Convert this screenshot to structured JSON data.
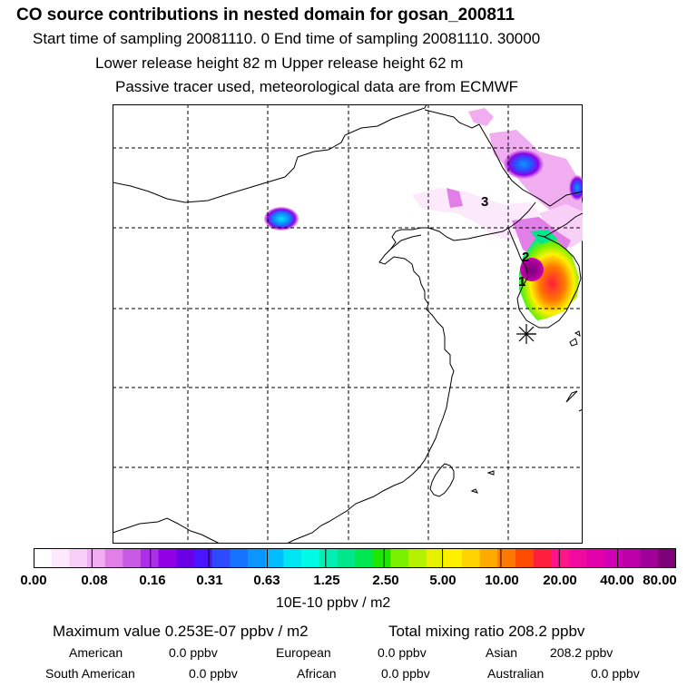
{
  "header": {
    "title": "CO  source contributions in nested domain for gosan_200811",
    "line1": "Start time of sampling 20081110.     0     End time of sampling 20081110. 30000",
    "line2": "Lower release height   82 m          Upper release height   62 m",
    "line3": "Passive tracer used, meteorological data are from ECMWF"
  },
  "map": {
    "site_labels": [
      "1",
      "2",
      "3"
    ],
    "receptor_icon": "asterisk-star-icon",
    "grid": true
  },
  "colorbar": {
    "colors": [
      "#ffffff",
      "#fce9fc",
      "#f7cff7",
      "#f0adf0",
      "#e17ee8",
      "#c85ae6",
      "#ad2ee8",
      "#9200e6",
      "#6b00e6",
      "#4a14ff",
      "#2e4aff",
      "#1473ff",
      "#0a96ff",
      "#00bdff",
      "#00e6f5",
      "#00fae6",
      "#00f0b4",
      "#00e68c",
      "#00e650",
      "#1ee600",
      "#78f000",
      "#b4f000",
      "#e6f000",
      "#fff000",
      "#ffd200",
      "#ffaa00",
      "#ff7800",
      "#ff4b00",
      "#ff1e3c",
      "#ff148c",
      "#f00aa0",
      "#e100aa",
      "#d200b4",
      "#be00aa",
      "#a00096",
      "#7d0078"
    ],
    "tick_labels": [
      "0.00",
      "0.08",
      "0.16",
      "0.31",
      "0.63",
      "1.25",
      "2.50",
      "5.00",
      "10.00",
      "20.00",
      "40.00",
      "80.00"
    ],
    "unit": "10E-10 ppbv / m2"
  },
  "footer": {
    "max_label": "Maximum value  0.253E-07 ppbv / m2",
    "total_label": "Total mixing ratio     208.2 ppbv",
    "regions": [
      {
        "name": "American",
        "value": "0.0 ppbv"
      },
      {
        "name": "European",
        "value": "0.0 ppbv"
      },
      {
        "name": "Asian",
        "value": "208.2 ppbv"
      },
      {
        "name": "South American",
        "value": "0.0 ppbv"
      },
      {
        "name": "African",
        "value": "0.0 ppbv"
      },
      {
        "name": "Australian",
        "value": "0.0 ppbv"
      }
    ]
  }
}
